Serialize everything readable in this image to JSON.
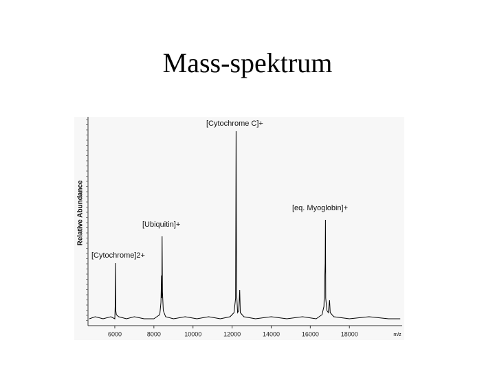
{
  "chart_data": {
    "type": "line",
    "title": "Mass-spektrum",
    "y_label": "Relative Abundance",
    "x_label": "m/z",
    "color": "#000000",
    "xlim": [
      4630,
      20700
    ],
    "ylim": [
      0,
      100
    ],
    "xticks": [
      6000,
      8000,
      10000,
      12000,
      14000,
      16000,
      18000
    ],
    "annotations": [
      "[Cytochrome]2+",
      "[Ubiquitin]+",
      "[Cytochrome C]+",
      "[eq. Myoglobin]+"
    ],
    "x": [
      4700,
      5000,
      5400,
      5800,
      6000,
      6020,
      6035,
      6050,
      6080,
      6200,
      6600,
      7000,
      7500,
      8000,
      8300,
      8360,
      8390,
      8405,
      8420,
      8440,
      8480,
      8600,
      9000,
      9600,
      10200,
      10800,
      11400,
      11900,
      12100,
      12180,
      12205,
      12215,
      12230,
      12280,
      12340,
      12390,
      12420,
      12600,
      13200,
      14000,
      14800,
      15600,
      16300,
      16600,
      16700,
      16760,
      16775,
      16790,
      16850,
      16920,
      16985,
      17020,
      17200,
      18000,
      19000,
      20000,
      20600
    ],
    "values": [
      2,
      3,
      2,
      3,
      2,
      8,
      29,
      6,
      4,
      3,
      2,
      3,
      2,
      2,
      4,
      10,
      23,
      12,
      42,
      15,
      6,
      3,
      2,
      3,
      2,
      3,
      2,
      3,
      5,
      12,
      93,
      53,
      15,
      5,
      6,
      16,
      5,
      3,
      2,
      3,
      2,
      3,
      2,
      4,
      8,
      29,
      50,
      12,
      6,
      5,
      11,
      5,
      3,
      2,
      3,
      2,
      2
    ]
  }
}
